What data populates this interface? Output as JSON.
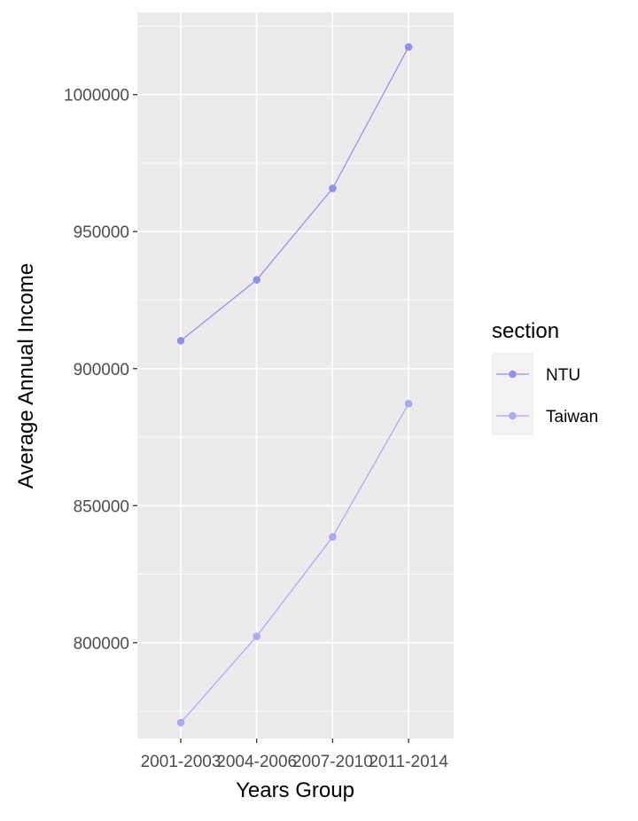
{
  "chart_data": {
    "type": "line",
    "title": "",
    "xlabel": "Years Group",
    "ylabel": "Average Annual Income",
    "categories": [
      "2001-2003",
      "2004-2006",
      "2007-2010",
      "2011-2014"
    ],
    "series": [
      {
        "name": "NTU",
        "values": [
          910200,
          932400,
          965800,
          1017400
        ],
        "color": "#8f8ff0"
      },
      {
        "name": "Taiwan",
        "values": [
          770800,
          802300,
          838600,
          887200
        ],
        "color": "#a9a9f5"
      }
    ],
    "ylim": [
      765000,
      1030000
    ],
    "yticks": [
      800000,
      850000,
      900000,
      950000,
      1000000
    ],
    "grid": true,
    "panel_background": "#ebebeb",
    "legend": {
      "title": "section",
      "position": "right"
    }
  }
}
